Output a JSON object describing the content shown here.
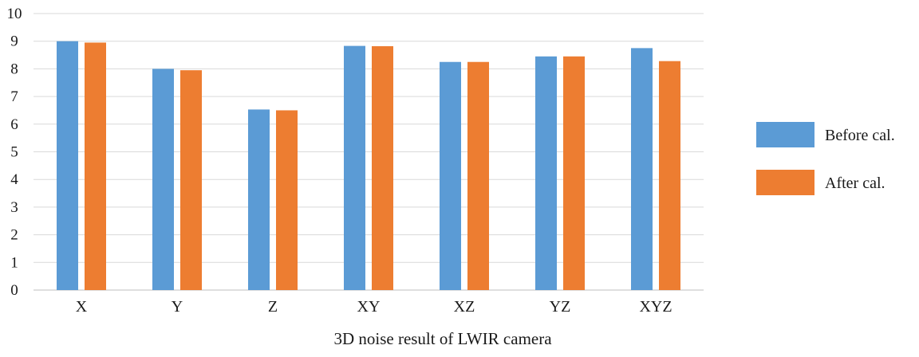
{
  "chart_data": {
    "type": "bar",
    "title": "",
    "xlabel": "3D noise result of LWIR camera",
    "ylabel": "",
    "ylim": [
      0,
      10
    ],
    "yticks": [
      0,
      1,
      2,
      3,
      4,
      5,
      6,
      7,
      8,
      9,
      10
    ],
    "grid": true,
    "legend_position": "right",
    "categories": [
      "X",
      "Y",
      "Z",
      "XY",
      "XZ",
      "YZ",
      "XYZ"
    ],
    "series": [
      {
        "name": "Before cal.",
        "color": "#5b9bd5",
        "values": [
          9.0,
          8.0,
          6.53,
          8.83,
          8.25,
          8.45,
          8.75
        ]
      },
      {
        "name": "After cal.",
        "color": "#ed7d31",
        "values": [
          8.95,
          7.95,
          6.5,
          8.82,
          8.25,
          8.45,
          8.28
        ]
      }
    ]
  }
}
